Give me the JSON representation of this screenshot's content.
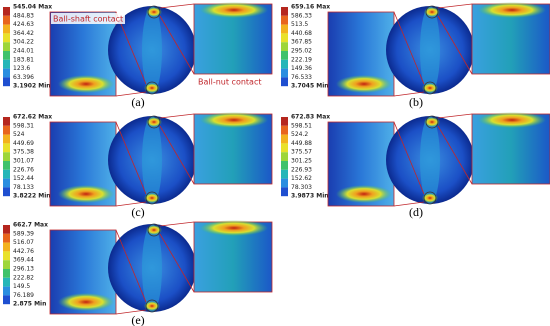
{
  "panels": [
    {
      "label": "(a)",
      "legend": [
        "545.04 Max",
        "484.83",
        "424.63",
        "364.42",
        "304.22",
        "244.01",
        "183.81",
        "123.6",
        "63.396",
        "3.1902 Min"
      ],
      "annotations": [
        "Ball-shaft contact",
        "Ball-nut contact"
      ]
    },
    {
      "label": "(b)",
      "legend": [
        "659.16 Max",
        "586.33",
        "513.5",
        "440.68",
        "367.85",
        "295.02",
        "222.19",
        "149.36",
        "76.533",
        "3.7045 Min"
      ]
    },
    {
      "label": "(c)",
      "legend": [
        "672.62 Max",
        "598.31",
        "524",
        "449.69",
        "375.38",
        "301.07",
        "226.76",
        "152.44",
        "78.133",
        "3.8222 Min"
      ]
    },
    {
      "label": "(d)",
      "legend": [
        "672.83 Max",
        "598.51",
        "524.2",
        "449.88",
        "375.57",
        "301.25",
        "226.93",
        "152.62",
        "78.303",
        "3.9873 Min"
      ]
    },
    {
      "label": "(e)",
      "legend": [
        "662.7 Max",
        "589.39",
        "516.07",
        "442.76",
        "369.44",
        "296.13",
        "222.82",
        "149.5",
        "76.189",
        "2.875 Min"
      ]
    }
  ]
}
